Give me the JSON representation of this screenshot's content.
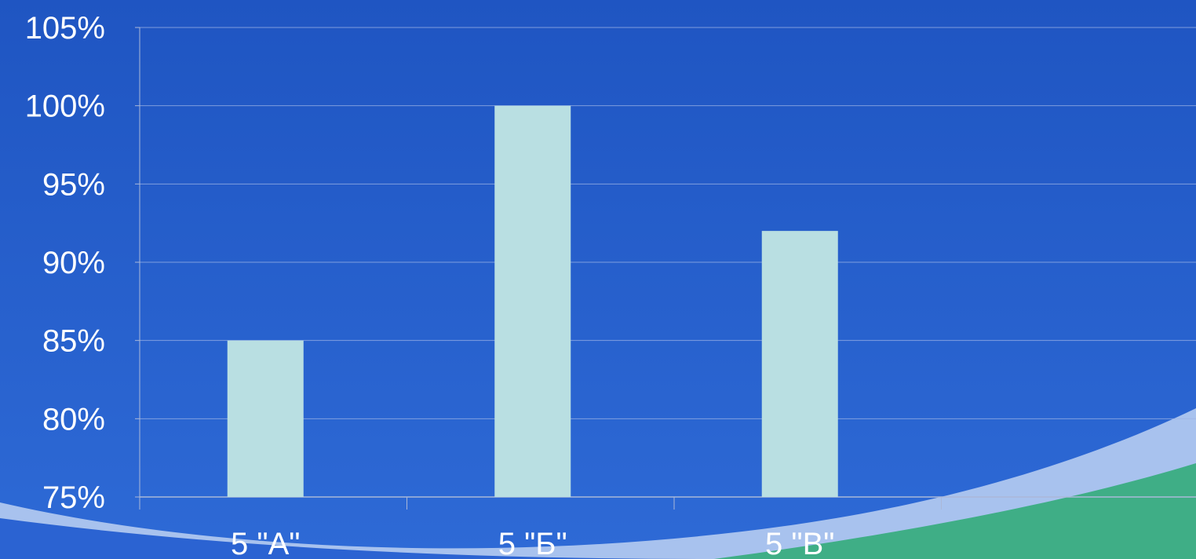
{
  "chart_data": {
    "type": "bar",
    "categories": [
      "5 \"А\"",
      "5 \"Б\"",
      "5 \"В\"",
      ""
    ],
    "values": [
      85,
      100,
      92,
      null
    ],
    "ylim": [
      75,
      105
    ],
    "y_ticks": [
      "75%",
      "80%",
      "85%",
      "90%",
      "95%",
      "100%",
      "105%"
    ],
    "y_tick_values": [
      75,
      80,
      85,
      90,
      95,
      100,
      105
    ],
    "grid": true,
    "legend": "none"
  },
  "colors": {
    "bar": "#b9dfe2",
    "grid": "#9db4e6",
    "axis": "#aab8d8",
    "background_top": "#1f55c2",
    "background_bottom": "#2e6ad6",
    "swoosh_light": "#a8c2ee",
    "swoosh_green": "#3fae86"
  }
}
